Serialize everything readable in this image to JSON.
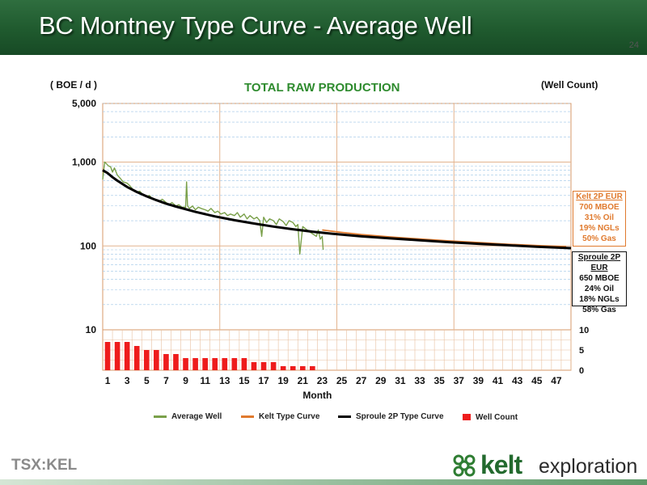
{
  "slide": {
    "title": "BC Montney Type Curve - Average Well",
    "number": "24"
  },
  "chart_data": {
    "type": "line",
    "title": "TOTAL RAW PRODUCTION",
    "left_axis_unit": "( BOE / d )",
    "right_axis_unit": "(Well Count)",
    "xlabel": "Month",
    "y_scale": "log",
    "y_range": [
      10,
      5000
    ],
    "y_ticks": [
      "5,000",
      "1,000",
      "100",
      "10"
    ],
    "y_tick_values": [
      5000,
      1000,
      100,
      10
    ],
    "x_range": [
      0.5,
      48.5
    ],
    "x_tick_labels": [
      "1",
      "3",
      "5",
      "7",
      "9",
      "11",
      "13",
      "15",
      "17",
      "19",
      "21",
      "23",
      "25",
      "27",
      "29",
      "31",
      "33",
      "35",
      "37",
      "39",
      "41",
      "43",
      "45",
      "47"
    ],
    "well_count_ticks": [
      "10",
      "5",
      "0"
    ],
    "well_count_tick_values": [
      10,
      5,
      0
    ],
    "well_count_range": [
      0,
      10
    ],
    "grid": true,
    "legend_position": "bottom",
    "series": [
      {
        "name": "Average Well",
        "type": "line",
        "color": "#7aa04a",
        "x": [
          0.5,
          0.7,
          0.9,
          1.1,
          1.3,
          1.5,
          1.7,
          2.0,
          2.3,
          2.6,
          3.0,
          3.3,
          3.6,
          4.0,
          4.3,
          4.6,
          5.0,
          5.3,
          5.6,
          6.0,
          6.3,
          6.6,
          7.0,
          7.3,
          7.6,
          8.0,
          8.3,
          8.6,
          9.0,
          9.1,
          9.2,
          9.4,
          9.7,
          10.0,
          10.3,
          10.6,
          11.0,
          11.3,
          11.6,
          12.0,
          12.3,
          12.6,
          13.0,
          13.3,
          13.6,
          14.0,
          14.3,
          14.6,
          15.0,
          15.3,
          15.6,
          16.0,
          16.3,
          16.6,
          16.8,
          17.0,
          17.3,
          17.6,
          18.0,
          18.3,
          18.6,
          19.0,
          19.3,
          19.6,
          20.0,
          20.3,
          20.5,
          20.7,
          21.0,
          21.3,
          21.6,
          22.0,
          22.4,
          22.6,
          22.8,
          23.0,
          23.1
        ],
        "values": [
          620,
          1000,
          950,
          900,
          880,
          760,
          850,
          700,
          640,
          580,
          560,
          520,
          470,
          440,
          450,
          410,
          390,
          400,
          360,
          350,
          340,
          360,
          330,
          310,
          330,
          300,
          310,
          290,
          290,
          580,
          300,
          280,
          300,
          270,
          290,
          280,
          270,
          260,
          280,
          250,
          260,
          240,
          250,
          230,
          240,
          230,
          250,
          220,
          240,
          210,
          230,
          210,
          220,
          200,
          130,
          220,
          190,
          210,
          200,
          180,
          210,
          195,
          175,
          200,
          190,
          170,
          180,
          80,
          170,
          160,
          150,
          140,
          130,
          155,
          120,
          130,
          90
        ]
      },
      {
        "name": "Kelt Type Curve",
        "type": "line",
        "color": "#e07a2e",
        "x": [
          23,
          25,
          27,
          30,
          33,
          36,
          39,
          42,
          45,
          48
        ],
        "values": [
          155,
          145,
          137,
          128,
          121,
          115,
          110,
          105,
          101,
          98
        ]
      },
      {
        "name": "Sproule 2P Type Curve",
        "type": "line",
        "color": "#000000",
        "x": [
          0.5,
          1,
          1.5,
          2,
          3,
          4,
          5,
          6,
          7,
          8,
          10,
          12,
          14,
          16,
          18,
          20,
          22,
          24,
          27,
          30,
          33,
          36,
          39,
          42,
          45,
          48.5
        ],
        "values": [
          800,
          740,
          660,
          600,
          505,
          440,
          390,
          352,
          320,
          295,
          255,
          225,
          203,
          185,
          170,
          158,
          148,
          140,
          130,
          123,
          117,
          111,
          106,
          102,
          98,
          94
        ]
      },
      {
        "name": "Well Count",
        "type": "bar",
        "color": "#ee1c1c",
        "x": [
          1,
          2,
          3,
          4,
          5,
          6,
          7,
          8,
          9,
          10,
          11,
          12,
          13,
          14,
          15,
          16,
          17,
          18,
          19,
          20,
          21,
          22
        ],
        "values": [
          7,
          7,
          7,
          6,
          5,
          5,
          4,
          4,
          3,
          3,
          3,
          3,
          3,
          3,
          3,
          2,
          2,
          2,
          1,
          1,
          1,
          1
        ]
      }
    ],
    "annotations": {
      "kelt_box": {
        "title": "Kelt 2P EUR",
        "lines": [
          "700 MBOE",
          "31% Oil",
          "19% NGLs",
          "50% Gas"
        ]
      },
      "sproule_box": {
        "title": "Sproule 2P EUR",
        "lines": [
          "650 MBOE",
          "24% Oil",
          "18% NGLs",
          "58% Gas"
        ]
      }
    }
  },
  "footer": {
    "ticker": "TSX:KEL",
    "brand_name": "kelt",
    "brand_sub": "exploration"
  }
}
